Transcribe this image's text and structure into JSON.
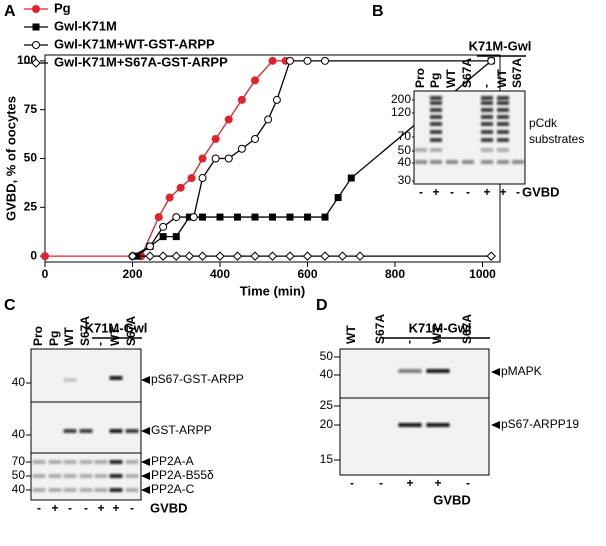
{
  "chart_data": {
    "type": "line",
    "label": "A",
    "xlabel": "Time (min)",
    "ylabel": "GVBD, % of oocytes",
    "xlim": [
      0,
      1040
    ],
    "xticks": [
      0,
      200,
      400,
      600,
      800,
      1000
    ],
    "ylim": [
      -3,
      103
    ],
    "yticks": [
      0,
      25,
      50,
      75,
      100
    ],
    "legend": "top-left",
    "series": [
      {
        "name": "Pg",
        "color": "#e8202a",
        "marker": "circle-filled",
        "x": [
          0,
          220,
          260,
          285,
          310,
          335,
          360,
          390,
          420,
          450,
          480,
          520,
          550
        ],
        "values": [
          0,
          0,
          20,
          30,
          35,
          40,
          50,
          60,
          70,
          80,
          90,
          100,
          100
        ]
      },
      {
        "name": "Gwl-K71M",
        "color": "#000000",
        "marker": "square-filled",
        "x": [
          210,
          240,
          270,
          300,
          330,
          360,
          400,
          440,
          480,
          520,
          560,
          600,
          640,
          670,
          700,
          1020
        ],
        "values": [
          0,
          5,
          10,
          10,
          20,
          20,
          20,
          20,
          20,
          20,
          20,
          20,
          20,
          30,
          40,
          100
        ]
      },
      {
        "name": "Gwl-K71M+WT-GST-ARPP",
        "color": "#000000",
        "marker": "circle-open",
        "x": [
          200,
          240,
          270,
          300,
          340,
          360,
          390,
          420,
          450,
          480,
          510,
          530,
          560,
          600,
          640,
          1020
        ],
        "values": [
          0,
          5,
          15,
          20,
          20,
          40,
          50,
          50,
          55,
          60,
          70,
          80,
          100,
          100,
          100,
          100
        ]
      },
      {
        "name": "Gwl-K71M+S67A-GST-ARPP",
        "color": "#000000",
        "marker": "diamond-open",
        "x": [
          200,
          240,
          270,
          300,
          330,
          360,
          400,
          440,
          480,
          520,
          560,
          600,
          640,
          680,
          720,
          1020
        ],
        "values": [
          0,
          0,
          0,
          0,
          0,
          0,
          0,
          0,
          0,
          0,
          0,
          0,
          0,
          0,
          0,
          0
        ]
      }
    ]
  },
  "panels": {
    "B": {
      "label": "B",
      "group": "K71M-Gwl",
      "lanes": [
        "Pro",
        "Pg",
        "WT",
        "S67A",
        "-",
        "WT",
        "S67A"
      ],
      "blots": [
        {
          "markers": [
            200,
            120,
            70,
            50,
            40,
            30
          ],
          "bands": [
            "pCdk",
            "substrates"
          ]
        }
      ],
      "gvbd": [
        "-",
        "+",
        "-",
        "-",
        "+",
        "+",
        "-"
      ],
      "gvbd_label": "GVBD"
    },
    "C": {
      "label": "C",
      "group": "K71M-Gwl",
      "lanes": [
        "Pro",
        "Pg",
        "WT",
        "S67A",
        "-",
        "WT",
        "S67A"
      ],
      "blots": [
        {
          "markers": [
            40
          ],
          "bands": [
            "pS67-GST-ARPP"
          ]
        },
        {
          "markers": [
            40
          ],
          "bands": [
            "GST-ARPP"
          ]
        },
        {
          "markers": [
            70,
            50,
            40
          ],
          "bands": [
            "PP2A-A",
            "PP2A-B55δ",
            "PP2A-C"
          ]
        }
      ],
      "gvbd": [
        "-",
        "+",
        "-",
        "-",
        "+",
        "+",
        "-"
      ],
      "gvbd_label": "GVBD"
    },
    "D": {
      "label": "D",
      "group": "K71M-Gwl",
      "lanes": [
        "WT",
        "S67A",
        "-",
        "WT",
        "S67A"
      ],
      "blots": [
        {
          "markers": [
            50,
            40
          ],
          "bands": [
            "pMAPK"
          ]
        },
        {
          "markers": [
            25,
            20,
            15
          ],
          "bands": [
            "pS67-ARPP19"
          ]
        }
      ],
      "gvbd": [
        "-",
        "-",
        "+",
        "+",
        "-"
      ],
      "gvbd_label": "GVBD"
    }
  }
}
